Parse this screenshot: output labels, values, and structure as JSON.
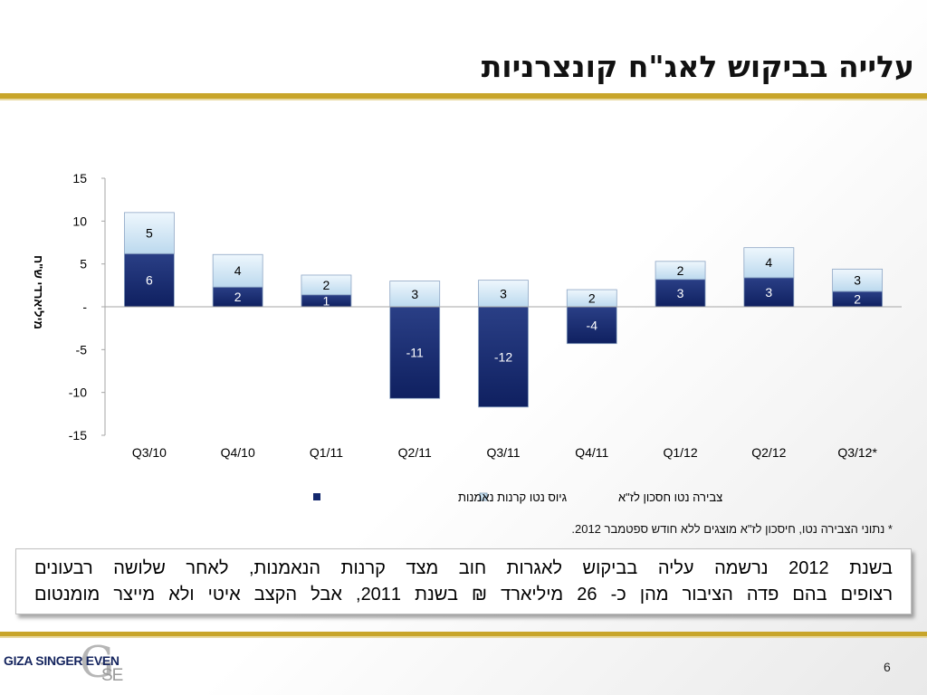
{
  "slide": {
    "title": "עלייה בביקוש לאג\"ח קונצרניות",
    "footnote": "* נתוני הצבירה נטו, חיסכון לז\"א מוצגים ללא חודש ספטמבר 2012.",
    "summary_line1": "בשנת 2012 נרשמה עליה בביקוש לאגרות חוב מצד קרנות הנאמנות, לאחר שלושה רבעונים",
    "summary_line2": "רצופים בהם פדה הציבור מהן כ- 26 מיליארד ₪ בשנת 2011, אבל הקצב איטי ולא מייצר מומנטום",
    "page_number": "6"
  },
  "logo": {
    "text": "GIZA SINGER EVEN",
    "mark_letter": "G",
    "mark_sub": "SE"
  },
  "chart_data": {
    "type": "bar",
    "stacked": true,
    "title": "",
    "ylabel": "מיליארדי ש\"ח",
    "xlabel": "",
    "ylim": [
      -15,
      15
    ],
    "yticks": [
      15,
      10,
      5,
      0,
      -5,
      -10,
      -15
    ],
    "ytick_labels": [
      "15",
      "10",
      "5",
      "-",
      "-5",
      "-10",
      "-15"
    ],
    "categories": [
      "Q3/10",
      "Q4/10",
      "Q1/11",
      "Q2/11",
      "Q3/11",
      "Q4/11",
      "Q1/12",
      "Q2/12",
      "Q3/12*"
    ],
    "series": [
      {
        "name": "גיוס נטו קרנות נאמנות",
        "values": [
          6.2,
          2.3,
          1.4,
          -10.7,
          -11.7,
          -4.3,
          3.2,
          3.4,
          1.8
        ],
        "labels": [
          "6",
          "2",
          "1",
          "-11",
          "-12",
          "-4",
          "3",
          "3",
          "2"
        ],
        "color": "#13286d"
      },
      {
        "name": "צבירה נטו חסכון לז\"א",
        "values": [
          4.8,
          3.8,
          2.3,
          3.0,
          3.1,
          2.0,
          2.1,
          3.5,
          2.6
        ],
        "labels": [
          "5",
          "4",
          "2",
          "3",
          "3",
          "2",
          "2",
          "4",
          "3"
        ],
        "color": "#c9e2f3"
      }
    ],
    "grid": false,
    "legend_position": "bottom"
  }
}
